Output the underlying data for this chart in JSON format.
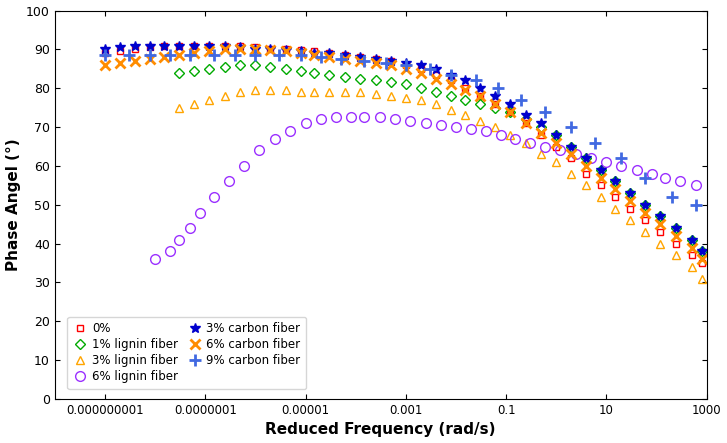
{
  "title": "",
  "xlabel": "Reduced Frequency (rad/s)",
  "ylabel": "Phase Angel (°)",
  "xlim": [
    1e-10,
    1000.0
  ],
  "ylim": [
    0,
    100
  ],
  "yticks": [
    0,
    10,
    20,
    30,
    40,
    50,
    60,
    70,
    80,
    90,
    100
  ],
  "xtick_positions": [
    1e-09,
    1e-07,
    1e-05,
    0.001,
    0.1,
    10,
    1000
  ],
  "xtick_labels": [
    "0.000000001",
    "0.0000001",
    "0.00001",
    "0.001",
    "0.1",
    "10",
    "1000"
  ],
  "series": [
    {
      "label": "0%",
      "color": "#FF0000",
      "marker": "s",
      "markersize": 5,
      "fillstyle": "none",
      "linewidth": 0,
      "x": [
        1e-09,
        2e-09,
        4e-09,
        8e-09,
        1.5e-08,
        3e-08,
        6e-08,
        1.2e-07,
        2.5e-07,
        5e-07,
        1e-06,
        2e-06,
        4e-06,
        8e-06,
        1.5e-05,
        3e-05,
        6e-05,
        0.00012,
        0.00025,
        0.0005,
        0.001,
        0.002,
        0.004,
        0.008,
        0.015,
        0.03,
        0.06,
        0.12,
        0.25,
        0.5,
        1,
        2,
        4,
        8,
        15,
        30,
        60,
        120,
        250,
        500,
        800
      ],
      "y": [
        89,
        89.5,
        90,
        90.5,
        91,
        91,
        91,
        91,
        91,
        90.8,
        90.5,
        90.2,
        90,
        89.8,
        89.5,
        89,
        88.5,
        88,
        87.5,
        87,
        86,
        85,
        83.5,
        82,
        80,
        78,
        76,
        74,
        71,
        68,
        65,
        62,
        58,
        55,
        52,
        49,
        46,
        43,
        40,
        37,
        35
      ]
    },
    {
      "label": "1% lignin fiber",
      "color": "#00AA00",
      "marker": "D",
      "markersize": 5,
      "fillstyle": "none",
      "linewidth": 0,
      "x": [
        3e-08,
        6e-08,
        1.2e-07,
        2.5e-07,
        5e-07,
        1e-06,
        2e-06,
        4e-06,
        8e-06,
        1.5e-05,
        3e-05,
        6e-05,
        0.00012,
        0.00025,
        0.0005,
        0.001,
        0.002,
        0.004,
        0.008,
        0.015,
        0.03,
        0.06,
        0.12,
        0.25,
        0.5,
        1,
        2,
        4,
        8,
        15,
        30,
        60,
        120,
        250,
        500,
        800
      ],
      "y": [
        84,
        84.5,
        85,
        85.5,
        86,
        86,
        85.5,
        85,
        84.5,
        84,
        83.5,
        83,
        82.5,
        82,
        81.5,
        81,
        80,
        79,
        78,
        77,
        76,
        75,
        74,
        72,
        70,
        68,
        65,
        62,
        59,
        56,
        53,
        50,
        47,
        44,
        41,
        38
      ]
    },
    {
      "label": "3% lignin fiber",
      "color": "#FFA500",
      "marker": "^",
      "markersize": 6,
      "fillstyle": "none",
      "linewidth": 0,
      "x": [
        3e-08,
        6e-08,
        1.2e-07,
        2.5e-07,
        5e-07,
        1e-06,
        2e-06,
        4e-06,
        8e-06,
        1.5e-05,
        3e-05,
        6e-05,
        0.00012,
        0.00025,
        0.0005,
        0.001,
        0.002,
        0.004,
        0.008,
        0.015,
        0.03,
        0.06,
        0.12,
        0.25,
        0.5,
        1,
        2,
        4,
        8,
        15,
        30,
        60,
        120,
        250,
        500,
        800
      ],
      "y": [
        75,
        76,
        77,
        78,
        79,
        79.5,
        79.5,
        79.5,
        79,
        79,
        79,
        79,
        79,
        78.5,
        78,
        77.5,
        77,
        76,
        74.5,
        73,
        71.5,
        70,
        68,
        66,
        63,
        61,
        58,
        55,
        52,
        49,
        46,
        43,
        40,
        37,
        34,
        31
      ]
    },
    {
      "label": "6% lignin fiber",
      "color": "#9B30FF",
      "marker": "o",
      "markersize": 7,
      "fillstyle": "none",
      "linewidth": 0,
      "x": [
        1e-08,
        2e-08,
        3e-08,
        5e-08,
        8e-08,
        1.5e-07,
        3e-07,
        6e-07,
        1.2e-06,
        2.5e-06,
        5e-06,
        1e-05,
        2e-05,
        4e-05,
        8e-05,
        0.00015,
        0.0003,
        0.0006,
        0.0012,
        0.0025,
        0.005,
        0.01,
        0.02,
        0.04,
        0.08,
        0.15,
        0.3,
        0.6,
        1.2,
        2.5,
        5,
        10,
        20,
        40,
        80,
        150,
        300,
        600
      ],
      "y": [
        36,
        38,
        41,
        44,
        48,
        52,
        56,
        60,
        64,
        67,
        69,
        71,
        72,
        72.5,
        72.5,
        72.5,
        72.5,
        72,
        71.5,
        71,
        70.5,
        70,
        69.5,
        69,
        68,
        67,
        66,
        65,
        64,
        63,
        62,
        61,
        60,
        59,
        58,
        57,
        56,
        55
      ]
    },
    {
      "label": "3% carbon fiber",
      "color": "#0000CD",
      "marker": "*",
      "markersize": 7,
      "fillstyle": "full",
      "linewidth": 0,
      "markeredgewidth": 1,
      "x": [
        1e-09,
        2e-09,
        4e-09,
        8e-09,
        1.5e-08,
        3e-08,
        6e-08,
        1.2e-07,
        2.5e-07,
        5e-07,
        1e-06,
        2e-06,
        4e-06,
        8e-06,
        1.5e-05,
        3e-05,
        6e-05,
        0.00012,
        0.00025,
        0.0005,
        0.001,
        0.002,
        0.004,
        0.008,
        0.015,
        0.03,
        0.06,
        0.12,
        0.25,
        0.5,
        1,
        2,
        4,
        8,
        15,
        30,
        60,
        120,
        250,
        500,
        800
      ],
      "y": [
        90,
        90.5,
        91,
        91,
        91,
        91,
        91,
        91,
        90.8,
        90.5,
        90.2,
        90,
        89.8,
        89.5,
        89.2,
        89,
        88.5,
        88,
        87.5,
        87,
        86.5,
        86,
        85,
        83.5,
        82,
        80,
        78,
        76,
        73,
        71,
        68,
        65,
        62,
        59,
        56,
        53,
        50,
        47,
        44,
        41,
        38
      ]
    },
    {
      "label": "6% carbon fiber",
      "color": "#FF8C00",
      "marker": "x",
      "markersize": 7,
      "fillstyle": "full",
      "linewidth": 0,
      "markeredgewidth": 2,
      "x": [
        1e-09,
        2e-09,
        4e-09,
        8e-09,
        1.5e-08,
        3e-08,
        6e-08,
        1.2e-07,
        2.5e-07,
        5e-07,
        1e-06,
        2e-06,
        4e-06,
        8e-06,
        1.5e-05,
        3e-05,
        6e-05,
        0.00012,
        0.00025,
        0.0005,
        0.001,
        0.002,
        0.004,
        0.008,
        0.015,
        0.03,
        0.06,
        0.12,
        0.25,
        0.5,
        1,
        2,
        4,
        8,
        15,
        30,
        60,
        120,
        250,
        500,
        800
      ],
      "y": [
        86,
        86.5,
        87,
        87.5,
        88,
        88.5,
        89,
        89.5,
        90,
        90,
        90,
        89.8,
        89.5,
        89,
        88.5,
        88,
        87.5,
        87,
        86.5,
        86,
        85,
        84,
        82.5,
        81,
        79.5,
        78,
        76,
        74,
        71,
        68.5,
        66,
        63,
        60,
        57,
        54,
        51,
        48,
        45,
        42,
        39,
        36
      ]
    },
    {
      "label": "9% carbon fiber",
      "color": "#4169E1",
      "marker": "+",
      "markersize": 8,
      "fillstyle": "full",
      "linewidth": 0,
      "markeredgewidth": 2,
      "x": [
        1e-09,
        3e-09,
        8e-09,
        2e-08,
        5e-08,
        1.5e-07,
        4e-07,
        1e-06,
        3e-06,
        8e-06,
        2e-05,
        5e-05,
        0.00015,
        0.0004,
        0.001,
        0.003,
        0.008,
        0.025,
        0.07,
        0.2,
        0.6,
        2,
        6,
        20,
        60,
        200,
        600
      ],
      "y": [
        88.5,
        88.5,
        88.5,
        88.5,
        88.5,
        88.5,
        88.5,
        88.5,
        88.5,
        88.5,
        88,
        87.5,
        87,
        86.5,
        86,
        85,
        83.5,
        82,
        80,
        77,
        74,
        70,
        66,
        62,
        57,
        52,
        50
      ]
    }
  ]
}
